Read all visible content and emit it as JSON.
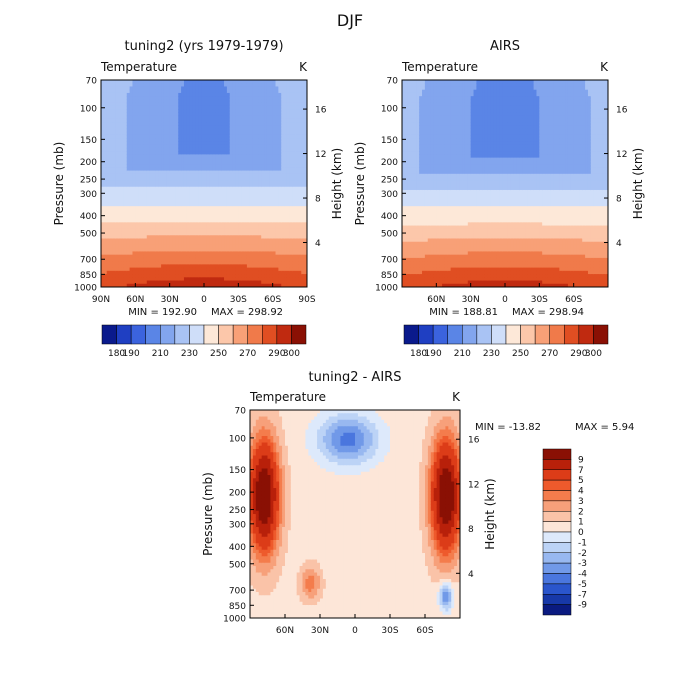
{
  "figure": {
    "title": "DJF"
  },
  "chart_data": [
    {
      "type": "heatmap",
      "panel": "model",
      "title": "tuning2 (yrs 1979-1979)",
      "variable_label": "Temperature",
      "units": "K",
      "ylabel_left": "Pressure (mb)",
      "ylabel_right": "Height (km)",
      "x_ticks": [
        "90N",
        "60N",
        "30N",
        "0",
        "30S",
        "60S",
        "90S"
      ],
      "x_tick_values": [
        90,
        60,
        30,
        0,
        -30,
        -60,
        -90
      ],
      "xlim": [
        90,
        -90
      ],
      "y_ticks": [
        "70",
        "100",
        "150",
        "200",
        "250",
        "300",
        "400",
        "500",
        "700",
        "850",
        "1000"
      ],
      "y_tick_values": [
        70,
        100,
        150,
        200,
        250,
        300,
        400,
        500,
        700,
        850,
        1000
      ],
      "ylim": [
        70,
        1000
      ],
      "y_scale": "log",
      "height_ticks": [
        "4",
        "8",
        "12",
        "16"
      ],
      "height_tick_values": [
        4,
        8,
        12,
        16
      ],
      "min_label": "MIN = 192.90",
      "max_label": "MAX = 298.92",
      "min": 192.9,
      "max": 298.92,
      "levels": [
        180,
        190,
        200,
        210,
        220,
        230,
        240,
        250,
        260,
        270,
        280,
        290,
        300
      ],
      "colorbar_labels": [
        "180",
        "190",
        "210",
        "230",
        "250",
        "270",
        "290",
        "300"
      ],
      "colors": [
        "#0a1a8c",
        "#1f3fc2",
        "#3b63de",
        "#5a85e6",
        "#82a5ee",
        "#a9c3f4",
        "#cfdef9",
        "#fde8d8",
        "#fcc7aa",
        "#f8a077",
        "#f07a4a",
        "#e04e22",
        "#c02a10",
        "#8a1004"
      ]
    },
    {
      "type": "heatmap",
      "panel": "obs",
      "title": "AIRS",
      "variable_label": "Temperature",
      "units": "K",
      "ylabel_left": "Pressure (mb)",
      "ylabel_right": "Height (km)",
      "x_ticks": [
        "60N",
        "30N",
        "0",
        "30S",
        "60S"
      ],
      "x_tick_values": [
        60,
        30,
        0,
        -30,
        -60
      ],
      "xlim": [
        90,
        -90
      ],
      "y_ticks": [
        "70",
        "100",
        "150",
        "200",
        "250",
        "300",
        "400",
        "500",
        "700",
        "850",
        "1000"
      ],
      "y_tick_values": [
        70,
        100,
        150,
        200,
        250,
        300,
        400,
        500,
        700,
        850,
        1000
      ],
      "ylim": [
        70,
        1000
      ],
      "y_scale": "log",
      "height_ticks": [
        "4",
        "8",
        "12",
        "16"
      ],
      "height_tick_values": [
        4,
        8,
        12,
        16
      ],
      "min_label": "MIN = 188.81",
      "max_label": "MAX = 298.94",
      "min": 188.81,
      "max": 298.94,
      "levels": [
        180,
        190,
        200,
        210,
        220,
        230,
        240,
        250,
        260,
        270,
        280,
        290,
        300
      ],
      "colorbar_labels": [
        "180",
        "190",
        "210",
        "230",
        "250",
        "270",
        "290",
        "300"
      ],
      "colors": [
        "#0a1a8c",
        "#1f3fc2",
        "#3b63de",
        "#5a85e6",
        "#82a5ee",
        "#a9c3f4",
        "#cfdef9",
        "#fde8d8",
        "#fcc7aa",
        "#f8a077",
        "#f07a4a",
        "#e04e22",
        "#c02a10",
        "#8a1004"
      ]
    },
    {
      "type": "heatmap",
      "panel": "diff",
      "title": "tuning2 - AIRS",
      "variable_label": "Temperature",
      "units": "K",
      "ylabel_left": "Pressure (mb)",
      "ylabel_right": "Height (km)",
      "x_ticks": [
        "60N",
        "30N",
        "0",
        "30S",
        "60S"
      ],
      "x_tick_values": [
        60,
        30,
        0,
        -30,
        -60
      ],
      "xlim": [
        90,
        -90
      ],
      "y_ticks": [
        "70",
        "100",
        "150",
        "200",
        "250",
        "300",
        "400",
        "500",
        "700",
        "850",
        "1000"
      ],
      "y_tick_values": [
        70,
        100,
        150,
        200,
        250,
        300,
        400,
        500,
        700,
        850,
        1000
      ],
      "ylim": [
        70,
        1000
      ],
      "y_scale": "log",
      "height_ticks": [
        "4",
        "8",
        "12",
        "16"
      ],
      "height_tick_values": [
        4,
        8,
        12,
        16
      ],
      "min_label": "MIN = -13.82",
      "max_label": "MAX =   5.94",
      "min": -13.82,
      "max": 5.94,
      "levels": [
        -9,
        -7,
        -5,
        -4,
        -3,
        -2,
        -1,
        0,
        1,
        2,
        3,
        4,
        5,
        7,
        9
      ],
      "colorbar_labels": [
        "9",
        "7",
        "5",
        "4",
        "3",
        "2",
        "1",
        "0",
        "-1",
        "-2",
        "-3",
        "-4",
        "-5",
        "-7",
        "-9"
      ],
      "colors": [
        "#8a1004",
        "#b8200a",
        "#dc3c18",
        "#ee5a2c",
        "#f47c4c",
        "#f7a07a",
        "#fac3a8",
        "#fde6d8",
        "#dde9fb",
        "#bcd3f6",
        "#98b8f0",
        "#7199e8",
        "#4a76de",
        "#2a55cc",
        "#1738a8",
        "#0a1a80"
      ]
    }
  ]
}
